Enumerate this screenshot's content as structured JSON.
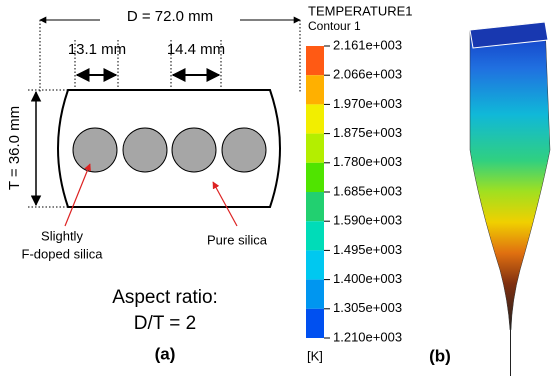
{
  "panel_a": {
    "width_label": "D = 72.0 mm",
    "gap_label_1": "13.1 mm",
    "gap_label_2": "14.4 mm",
    "height_label": "T = 36.0 mm",
    "doped_label": [
      "Slightly",
      "F-doped silica"
    ],
    "pure_label": "Pure silica",
    "ratio_label": [
      "Aspect ratio:",
      "D/T = 2"
    ],
    "panel_label": "(a)"
  },
  "panel_b": {
    "title": "TEMPERATURE1",
    "subtitle": "Contour 1",
    "colorbar_labels": [
      "2.161e+003",
      "2.066e+003",
      "1.970e+003",
      "1.875e+003",
      "1.780e+003",
      "1.685e+003",
      "1.590e+003",
      "1.495e+003",
      "1.400e+003",
      "1.305e+003",
      "1.210e+003"
    ],
    "unit": "[K]",
    "panel_label": "(b)"
  }
}
